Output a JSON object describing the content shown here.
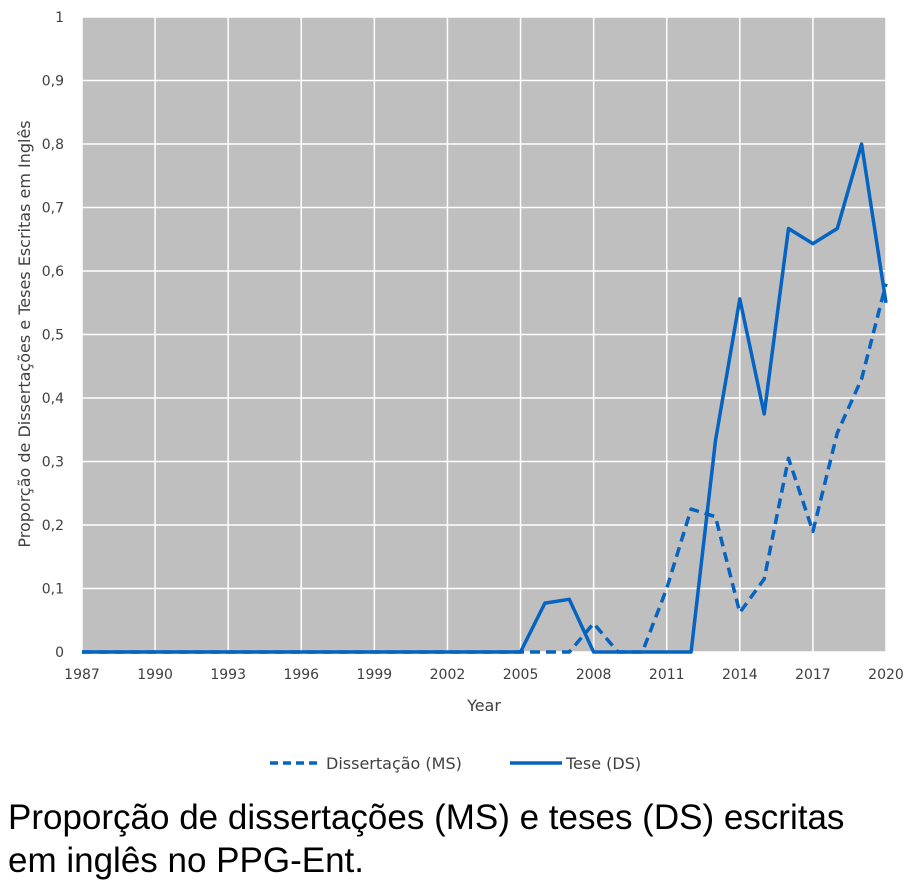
{
  "chart_data": {
    "type": "line",
    "title": "",
    "xlabel": "Year",
    "ylabel": "Proporção de Dissertações e Teses Escritas em Inglês",
    "xlim": [
      1987,
      2020
    ],
    "ylim": [
      0,
      1
    ],
    "x_ticks": [
      "1987",
      "1990",
      "1993",
      "1996",
      "1999",
      "2002",
      "2005",
      "2008",
      "2011",
      "2014",
      "2017",
      "2020"
    ],
    "y_ticks": [
      "0",
      "0,1",
      "0,2",
      "0,3",
      "0,4",
      "0,5",
      "0,6",
      "0,7",
      "0,8",
      "0,9",
      "1"
    ],
    "grid": true,
    "legend_position": "bottom",
    "colors": {
      "line": "#0563C1",
      "plot_bg": "#BFBFBF",
      "grid": "#FFFFFF"
    },
    "x": [
      1987,
      1988,
      1989,
      1990,
      1991,
      1992,
      1993,
      1994,
      1995,
      1996,
      1997,
      1998,
      1999,
      2000,
      2001,
      2002,
      2003,
      2004,
      2005,
      2006,
      2007,
      2008,
      2009,
      2010,
      2011,
      2012,
      2013,
      2014,
      2015,
      2016,
      2017,
      2018,
      2019,
      2020
    ],
    "series": [
      {
        "name": "Dissertação (MS)",
        "style": "dashed",
        "values": [
          0,
          0,
          0,
          0,
          0,
          0,
          0,
          0,
          0,
          0,
          0,
          0,
          0,
          0,
          0,
          0,
          0,
          0,
          0,
          0,
          0,
          0.045,
          0,
          0,
          0.1,
          0.225,
          0.213,
          0.062,
          0.115,
          0.305,
          0.19,
          0.345,
          0.43,
          0.58
        ]
      },
      {
        "name": "Tese (DS)",
        "style": "solid",
        "values": [
          0,
          0,
          0,
          0,
          0,
          0,
          0,
          0,
          0,
          0,
          0,
          0,
          0,
          0,
          0,
          0,
          0,
          0,
          0,
          0.077,
          0.083,
          0,
          0,
          0,
          0,
          0,
          0.333,
          0.556,
          0.375,
          0.667,
          0.643,
          0.667,
          0.8,
          0.55
        ]
      }
    ]
  },
  "caption": {
    "line1": "Proporção de dissertações (MS) e teses (DS)",
    "line1_end": "escritas",
    "line2": "em inglês no PPG-Ent."
  }
}
